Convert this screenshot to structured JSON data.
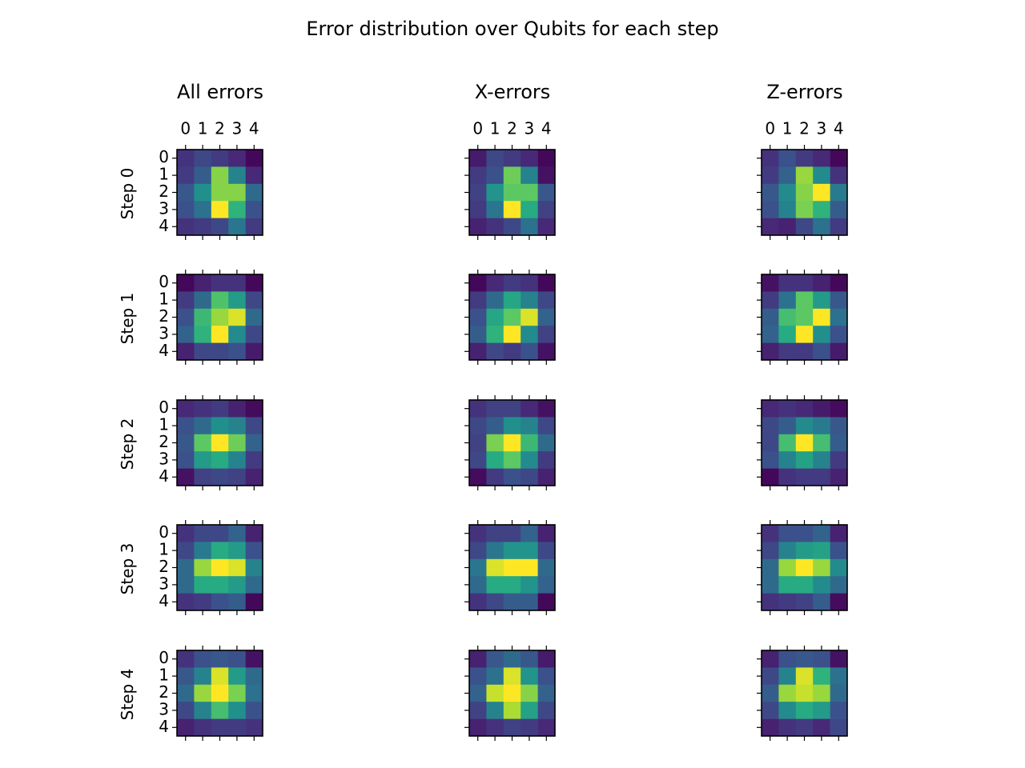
{
  "chart_data": {
    "type": "heatmap",
    "title": "Error distribution over Qubits for each step",
    "columns": [
      "All errors",
      "X-errors",
      "Z-errors"
    ],
    "rows": [
      "Step 0",
      "Step 1",
      "Step 2",
      "Step 3",
      "Step 4"
    ],
    "x_ticks": [
      "0",
      "1",
      "2",
      "3",
      "4"
    ],
    "y_ticks": [
      "0",
      "1",
      "2",
      "3",
      "4"
    ],
    "colormap": "viridis",
    "grid": false,
    "panels": [
      [
        [
          [
            0.15,
            0.22,
            0.18,
            0.12,
            0.02
          ],
          [
            0.18,
            0.3,
            0.82,
            0.45,
            0.12
          ],
          [
            0.28,
            0.5,
            0.82,
            0.82,
            0.35
          ],
          [
            0.25,
            0.38,
            1.0,
            0.65,
            0.25
          ],
          [
            0.15,
            0.18,
            0.22,
            0.4,
            0.18
          ]
        ],
        [
          [
            0.08,
            0.22,
            0.18,
            0.12,
            0.02
          ],
          [
            0.18,
            0.25,
            0.78,
            0.45,
            0.05
          ],
          [
            0.2,
            0.52,
            0.75,
            0.75,
            0.28
          ],
          [
            0.18,
            0.4,
            1.0,
            0.62,
            0.2
          ],
          [
            0.1,
            0.15,
            0.22,
            0.38,
            0.12
          ]
        ],
        [
          [
            0.15,
            0.25,
            0.18,
            0.12,
            0.02
          ],
          [
            0.18,
            0.32,
            0.85,
            0.48,
            0.15
          ],
          [
            0.28,
            0.48,
            0.82,
            1.0,
            0.42
          ],
          [
            0.25,
            0.45,
            0.8,
            0.65,
            0.3
          ],
          [
            0.12,
            0.1,
            0.22,
            0.38,
            0.18
          ]
        ]
      ],
      [
        [
          [
            0.02,
            0.1,
            0.15,
            0.15,
            0.02
          ],
          [
            0.18,
            0.35,
            0.72,
            0.55,
            0.22
          ],
          [
            0.25,
            0.68,
            0.85,
            0.95,
            0.35
          ],
          [
            0.32,
            0.65,
            1.0,
            0.48,
            0.22
          ],
          [
            0.1,
            0.22,
            0.22,
            0.25,
            0.08
          ]
        ],
        [
          [
            0.02,
            0.12,
            0.18,
            0.15,
            0.02
          ],
          [
            0.18,
            0.35,
            0.6,
            0.45,
            0.22
          ],
          [
            0.25,
            0.6,
            0.75,
            0.95,
            0.32
          ],
          [
            0.3,
            0.65,
            1.0,
            0.48,
            0.2
          ],
          [
            0.1,
            0.22,
            0.18,
            0.25,
            0.05
          ]
        ],
        [
          [
            0.05,
            0.15,
            0.15,
            0.1,
            0.02
          ],
          [
            0.18,
            0.38,
            0.75,
            0.55,
            0.28
          ],
          [
            0.3,
            0.7,
            0.75,
            1.0,
            0.38
          ],
          [
            0.32,
            0.62,
            1.0,
            0.5,
            0.25
          ],
          [
            0.1,
            0.18,
            0.18,
            0.25,
            0.08
          ]
        ]
      ],
      [
        [
          [
            0.12,
            0.15,
            0.18,
            0.1,
            0.03
          ],
          [
            0.25,
            0.35,
            0.5,
            0.45,
            0.22
          ],
          [
            0.28,
            0.75,
            1.0,
            0.78,
            0.32
          ],
          [
            0.25,
            0.55,
            0.62,
            0.45,
            0.18
          ],
          [
            0.05,
            0.2,
            0.22,
            0.2,
            0.1
          ]
        ],
        [
          [
            0.15,
            0.2,
            0.2,
            0.12,
            0.05
          ],
          [
            0.22,
            0.3,
            0.5,
            0.45,
            0.22
          ],
          [
            0.2,
            0.8,
            1.0,
            0.68,
            0.35
          ],
          [
            0.22,
            0.62,
            0.75,
            0.48,
            0.18
          ],
          [
            0.03,
            0.18,
            0.25,
            0.22,
            0.1
          ]
        ],
        [
          [
            0.12,
            0.15,
            0.12,
            0.08,
            0.03
          ],
          [
            0.22,
            0.3,
            0.48,
            0.42,
            0.28
          ],
          [
            0.22,
            0.7,
            1.0,
            0.7,
            0.3
          ],
          [
            0.25,
            0.45,
            0.58,
            0.45,
            0.18
          ],
          [
            0.02,
            0.15,
            0.18,
            0.18,
            0.1
          ]
        ]
      ],
      [
        [
          [
            0.15,
            0.22,
            0.22,
            0.32,
            0.1
          ],
          [
            0.22,
            0.42,
            0.62,
            0.55,
            0.25
          ],
          [
            0.35,
            0.85,
            1.0,
            0.95,
            0.45
          ],
          [
            0.35,
            0.62,
            0.62,
            0.55,
            0.35
          ],
          [
            0.15,
            0.18,
            0.25,
            0.3,
            0.02
          ]
        ],
        [
          [
            0.15,
            0.2,
            0.2,
            0.32,
            0.1
          ],
          [
            0.22,
            0.4,
            0.52,
            0.52,
            0.22
          ],
          [
            0.4,
            0.95,
            1.0,
            1.0,
            0.35
          ],
          [
            0.35,
            0.62,
            0.62,
            0.52,
            0.32
          ],
          [
            0.15,
            0.22,
            0.3,
            0.3,
            0.02
          ]
        ],
        [
          [
            0.15,
            0.25,
            0.25,
            0.32,
            0.1
          ],
          [
            0.22,
            0.45,
            0.55,
            0.58,
            0.25
          ],
          [
            0.35,
            0.85,
            1.0,
            0.85,
            0.48
          ],
          [
            0.35,
            0.62,
            0.62,
            0.48,
            0.35
          ],
          [
            0.15,
            0.18,
            0.2,
            0.3,
            0.03
          ]
        ]
      ],
      [
        [
          [
            0.15,
            0.25,
            0.28,
            0.25,
            0.05
          ],
          [
            0.28,
            0.45,
            0.95,
            0.55,
            0.35
          ],
          [
            0.35,
            0.85,
            1.0,
            0.8,
            0.38
          ],
          [
            0.22,
            0.45,
            0.7,
            0.5,
            0.25
          ],
          [
            0.1,
            0.15,
            0.18,
            0.18,
            0.15
          ]
        ],
        [
          [
            0.1,
            0.28,
            0.35,
            0.28,
            0.08
          ],
          [
            0.25,
            0.38,
            0.95,
            0.52,
            0.25
          ],
          [
            0.32,
            0.92,
            1.0,
            0.82,
            0.32
          ],
          [
            0.2,
            0.45,
            0.88,
            0.58,
            0.22
          ],
          [
            0.1,
            0.15,
            0.2,
            0.18,
            0.12
          ]
        ],
        [
          [
            0.1,
            0.25,
            0.28,
            0.25,
            0.05
          ],
          [
            0.22,
            0.45,
            0.95,
            0.65,
            0.38
          ],
          [
            0.3,
            0.85,
            0.92,
            0.85,
            0.35
          ],
          [
            0.22,
            0.48,
            0.62,
            0.55,
            0.25
          ],
          [
            0.1,
            0.15,
            0.18,
            0.12,
            0.22
          ]
        ]
      ]
    ]
  }
}
